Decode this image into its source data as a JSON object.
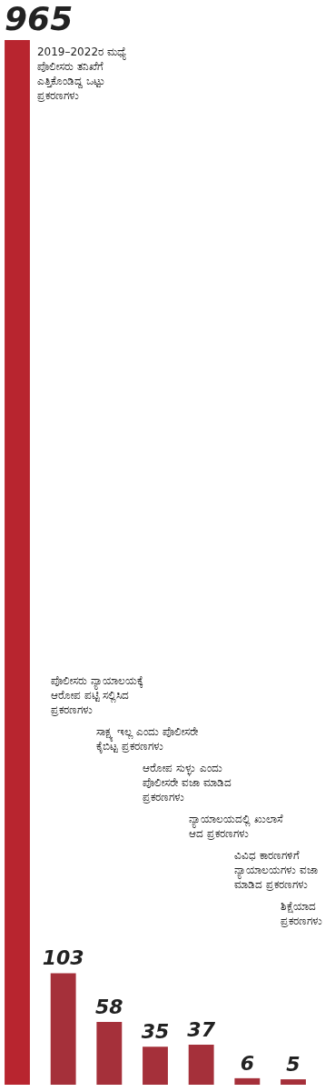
{
  "chart_data": {
    "type": "bar",
    "categories": [
      null,
      null,
      null,
      null,
      null,
      null,
      null
    ],
    "values": [
      965,
      103,
      58,
      35,
      37,
      6,
      5
    ],
    "data_labels": true,
    "colors": [
      "#b8252f",
      "#a5303a",
      "#a5303a",
      "#a5303a",
      "#a5303a",
      "#a5303a",
      "#a5303a"
    ],
    "annotations": [
      "2019–2022ರ ಮಧ್ಯೆ ಪೊಲೀಸರು ತನಿಖೆಗೆ ಎತ್ತಿಕೊಂಡಿದ್ದ ಒಟ್ಟು ಪ್ರಕರಣಗಳು",
      "ಪೊಲೀಸರು ನ್ಯಾಯಾಲಯಕ್ಕೆ ಆರೋಪ ಪಟ್ಟಿ ಸಲ್ಲಿಸಿದ ಪ್ರಕರಣಗಳು",
      "ಸಾಕ್ಷ್ಯ ಇಲ್ಲ ಎಂದು ಪೊಲೀಸರೇ ಕೈಬಿಟ್ಟ ಪ್ರಕರಣಗಳು",
      "ಆರೋಪ ಸುಳ್ಳು ಎಂದು ಪೊಲೀಸರೇ ವಜಾ ಮಾಡಿದ ಪ್ರಕರಣಗಳು",
      "ನ್ಯಾಯಾಲಯದಲ್ಲಿ ಖುಲಾಸೆ ಆದ ಪ್ರಕರಣಗಳು",
      "ವಿವಿಧ ಕಾರಣಗಳಿಗೆ ನ್ಯಾಯಾಲಯಗಳು ವಜಾ ಮಾಡಿದ ಪ್ರಕರಣಗಳು",
      "ಶಿಕ್ಷೆಯಾದ ಪ್ರಕರಣಗಳು"
    ]
  }
}
